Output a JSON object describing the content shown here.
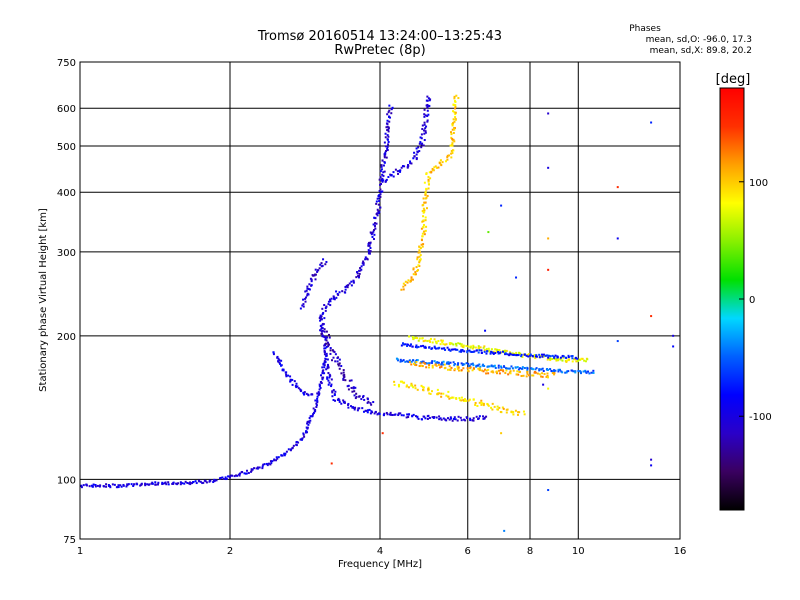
{
  "chart_data": {
    "type": "scatter",
    "title": "Tromsø 20160514 13:24:00–13:25:43",
    "subtitle": "RwPretec (8p)",
    "xlabel": "Frequency [MHz]",
    "ylabel": "Stationary phase Virtual Height [km]",
    "x_scale": "log",
    "y_scale": "log",
    "xlim": [
      1,
      16
    ],
    "ylim": [
      75,
      750
    ],
    "x_ticks": [
      1,
      2,
      4,
      6,
      8,
      10,
      16
    ],
    "x_tick_labels": [
      "1",
      "2",
      "4",
      "6",
      "8",
      "10",
      "16"
    ],
    "y_ticks": [
      75,
      100,
      200,
      300,
      400,
      500,
      600,
      750
    ],
    "y_tick_labels": [
      "75",
      "100",
      "200",
      "300",
      "400",
      "500",
      "600",
      "750"
    ],
    "grid": true,
    "phase_stats": {
      "heading": "Phases",
      "line_o": "mean, sd,O: -96.0, 17.3",
      "line_x": "mean, sd,X:  89.8, 20.2"
    },
    "colorbar": {
      "unit_label": "[deg]",
      "range": [
        -180,
        180
      ],
      "ticks": [
        100,
        0,
        -100
      ],
      "tick_labels": [
        "100",
        "0",
        "-100"
      ],
      "colormap": [
        "#000000",
        "#3a0060",
        "#2a00c8",
        "#0000ff",
        "#0060ff",
        "#00d8ff",
        "#00e000",
        "#88f000",
        "#ffff00",
        "#ffa000",
        "#ff3000",
        "#ff0000"
      ]
    },
    "traces": [
      {
        "name": "",
        "phase": -100,
        "jitter": 1.5,
        "points": [
          [
            1.0,
            97
          ],
          [
            1.2,
            97
          ],
          [
            1.4,
            98
          ],
          [
            1.6,
            98
          ],
          [
            1.8,
            99
          ],
          [
            2.0,
            101
          ],
          [
            2.2,
            104
          ],
          [
            2.4,
            108
          ],
          [
            2.6,
            114
          ],
          [
            2.8,
            122
          ],
          [
            2.95,
            140
          ],
          [
            3.05,
            160
          ],
          [
            3.1,
            180
          ]
        ]
      },
      {
        "name": "",
        "phase": -100,
        "jitter": 2.0,
        "points": [
          [
            3.05,
            220
          ],
          [
            3.1,
            190
          ],
          [
            3.15,
            165
          ],
          [
            3.25,
            148
          ],
          [
            3.5,
            141
          ],
          [
            3.8,
            139
          ],
          [
            4.2,
            137
          ],
          [
            4.8,
            135
          ],
          [
            5.5,
            134
          ],
          [
            6.2,
            134
          ],
          [
            6.6,
            135
          ]
        ]
      },
      {
        "name": "",
        "phase": -105,
        "jitter": 2.5,
        "points": [
          [
            3.05,
            215
          ],
          [
            3.1,
            230
          ],
          [
            3.2,
            240
          ],
          [
            3.4,
            250
          ],
          [
            3.6,
            265
          ],
          [
            3.8,
            300
          ],
          [
            3.95,
            360
          ],
          [
            4.05,
            440
          ],
          [
            4.15,
            540
          ],
          [
            4.2,
            610
          ]
        ]
      },
      {
        "name": "",
        "phase": -100,
        "jitter": 2.5,
        "points": [
          [
            4.05,
            420
          ],
          [
            4.3,
            440
          ],
          [
            4.6,
            460
          ],
          [
            4.85,
            500
          ],
          [
            4.95,
            580
          ],
          [
            5.0,
            640
          ]
        ]
      },
      {
        "name": "",
        "phase": -110,
        "jitter": 2.5,
        "points": [
          [
            2.8,
            230
          ],
          [
            2.85,
            245
          ],
          [
            2.95,
            265
          ],
          [
            3.1,
            290
          ]
        ]
      },
      {
        "name": "",
        "phase": -95,
        "jitter": 2.0,
        "points": [
          [
            2.45,
            185
          ],
          [
            2.6,
            165
          ],
          [
            2.8,
            152
          ],
          [
            2.95,
            150
          ]
        ]
      },
      {
        "name": "",
        "phase": -115,
        "jitter": 3.0,
        "points": [
          [
            3.05,
            210
          ],
          [
            3.2,
            185
          ],
          [
            3.4,
            165
          ],
          [
            3.6,
            150
          ],
          [
            3.9,
            143
          ]
        ]
      },
      {
        "name": "",
        "phase": 100,
        "jitter": 2.5,
        "points": [
          [
            4.45,
            250
          ],
          [
            4.65,
            265
          ],
          [
            4.8,
            290
          ],
          [
            4.9,
            340
          ],
          [
            4.95,
            400
          ],
          [
            5.0,
            440
          ],
          [
            5.3,
            460
          ],
          [
            5.55,
            480
          ],
          [
            5.65,
            560
          ],
          [
            5.7,
            640
          ]
        ]
      },
      {
        "name": "",
        "phase": 95,
        "jitter": 3.0,
        "points": [
          [
            4.3,
            160
          ],
          [
            4.8,
            155
          ],
          [
            5.5,
            150
          ],
          [
            6.2,
            145
          ],
          [
            7.0,
            140
          ],
          [
            7.8,
            137
          ]
        ]
      },
      {
        "name": "",
        "phase": 80,
        "jitter": 2.0,
        "points": [
          [
            4.6,
            198
          ],
          [
            5.5,
            193
          ],
          [
            6.5,
            188
          ],
          [
            7.5,
            183
          ],
          [
            8.5,
            180
          ],
          [
            9.5,
            178
          ],
          [
            10.5,
            178
          ]
        ]
      },
      {
        "name": "",
        "phase": -75,
        "jitter": 1.5,
        "points": [
          [
            4.4,
            192
          ],
          [
            5.0,
            189
          ],
          [
            6.0,
            186
          ],
          [
            7.0,
            184
          ],
          [
            8.0,
            182
          ],
          [
            9.0,
            181
          ],
          [
            10.0,
            180
          ]
        ]
      },
      {
        "name": "",
        "phase": -50,
        "jitter": 1.5,
        "points": [
          [
            4.3,
            178
          ],
          [
            5.5,
            175
          ],
          [
            7.0,
            172
          ],
          [
            8.5,
            170
          ],
          [
            9.8,
            168
          ],
          [
            10.8,
            168
          ]
        ]
      },
      {
        "name": "",
        "phase": 110,
        "jitter": 2.5,
        "points": [
          [
            4.6,
            175
          ],
          [
            6.0,
            170
          ],
          [
            7.5,
            167
          ],
          [
            9.0,
            165
          ]
        ]
      }
    ],
    "isolated_points": [
      [
        8.7,
        585,
        -110
      ],
      [
        8.7,
        450,
        -100
      ],
      [
        8.7,
        320,
        110
      ],
      [
        8.7,
        275,
        160
      ],
      [
        8.7,
        180,
        -95
      ],
      [
        8.7,
        95,
        -60
      ],
      [
        8.7,
        155,
        80
      ],
      [
        12.0,
        410,
        150
      ],
      [
        12.0,
        320,
        -90
      ],
      [
        12.0,
        195,
        -60
      ],
      [
        14.0,
        560,
        -70
      ],
      [
        14.0,
        220,
        150
      ],
      [
        14.0,
        110,
        -110
      ],
      [
        14.0,
        107,
        -90
      ],
      [
        15.5,
        200,
        -100
      ],
      [
        15.5,
        190,
        -80
      ],
      [
        7.1,
        78,
        -40
      ],
      [
        7.0,
        125,
        100
      ],
      [
        6.6,
        330,
        40
      ],
      [
        7.0,
        375,
        -70
      ],
      [
        7.5,
        265,
        -70
      ],
      [
        3.2,
        108,
        150
      ],
      [
        4.05,
        125,
        150
      ],
      [
        6.5,
        205,
        -80
      ],
      [
        8.5,
        158,
        -100
      ]
    ]
  }
}
